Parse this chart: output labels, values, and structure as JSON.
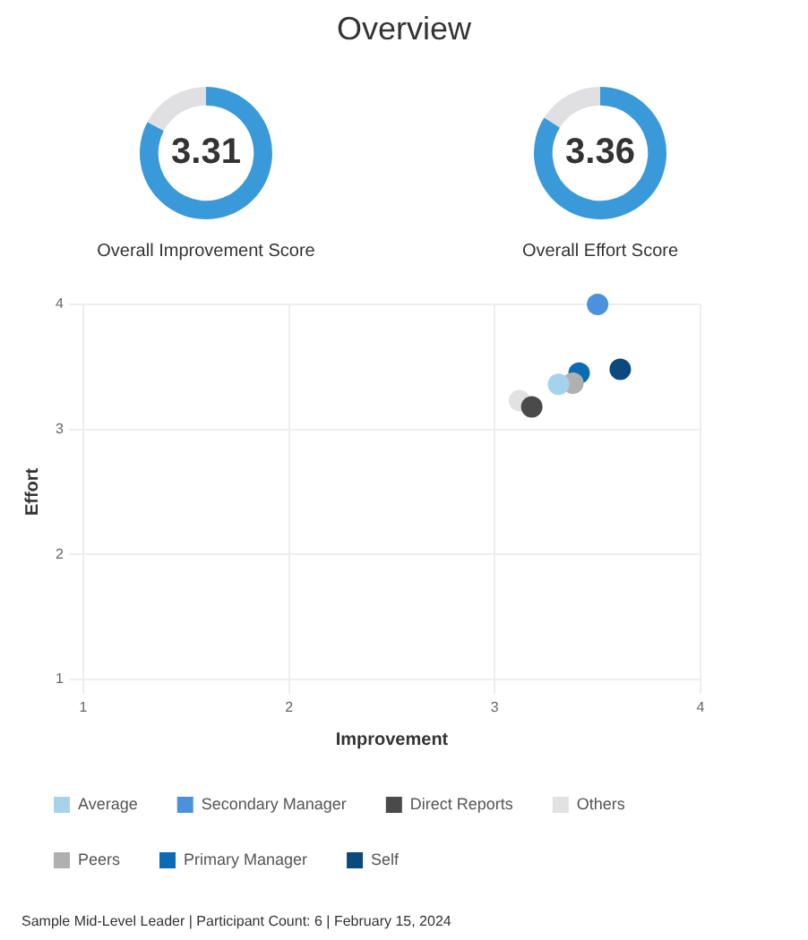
{
  "chart_data": [
    {
      "type": "donut",
      "title": "Overall Improvement Score",
      "categories": [
        null,
        null
      ],
      "values": [
        3.31,
        0.69
      ],
      "colors": [
        "#3a9ad9",
        "#e0e0e3"
      ],
      "value_labels": [
        "3.31",
        null
      ],
      "legend": false
    },
    {
      "type": "donut",
      "title": "Overall Effort Score",
      "categories": [
        null,
        null
      ],
      "values": [
        3.36,
        0.64
      ],
      "colors": [
        "#3a9ad9",
        "#e0e0e3"
      ],
      "value_labels": [
        "3.36",
        null
      ],
      "legend": false
    },
    {
      "type": "scatter",
      "title": "Overview",
      "xlabel": "Improvement",
      "ylabel": "Effort",
      "xlim": [
        1,
        4
      ],
      "ylim": [
        1,
        4
      ],
      "xticks": [
        1,
        2,
        3,
        4
      ],
      "yticks": [
        1,
        2,
        3,
        4
      ],
      "grid": true,
      "legend": "bottom",
      "marker": "circle",
      "series": [
        {
          "name": "Average",
          "color": "#a6d3ec",
          "x": [
            3.31
          ],
          "values": [
            3.36
          ]
        },
        {
          "name": "Secondary Manager",
          "color": "#4a93dc",
          "x": [
            3.5
          ],
          "values": [
            4.0
          ]
        },
        {
          "name": "Direct Reports",
          "color": "#4a4a4a",
          "x": [
            3.18
          ],
          "values": [
            3.18
          ]
        },
        {
          "name": "Others",
          "color": "#e2e2e2",
          "x": [
            3.12
          ],
          "values": [
            3.23
          ]
        },
        {
          "name": "Peers",
          "color": "#b0b0b0",
          "x": [
            3.38
          ],
          "values": [
            3.37
          ]
        },
        {
          "name": "Primary Manager",
          "color": "#0b6cb5",
          "x": [
            3.41
          ],
          "values": [
            3.45
          ]
        },
        {
          "name": "Self",
          "color": "#0a4a7c",
          "x": [
            3.61
          ],
          "values": [
            3.48
          ]
        }
      ],
      "annotations": [
        "Sample Mid-Level Leader   |   Participant Count: 6   |   February 15, 2024"
      ]
    }
  ]
}
